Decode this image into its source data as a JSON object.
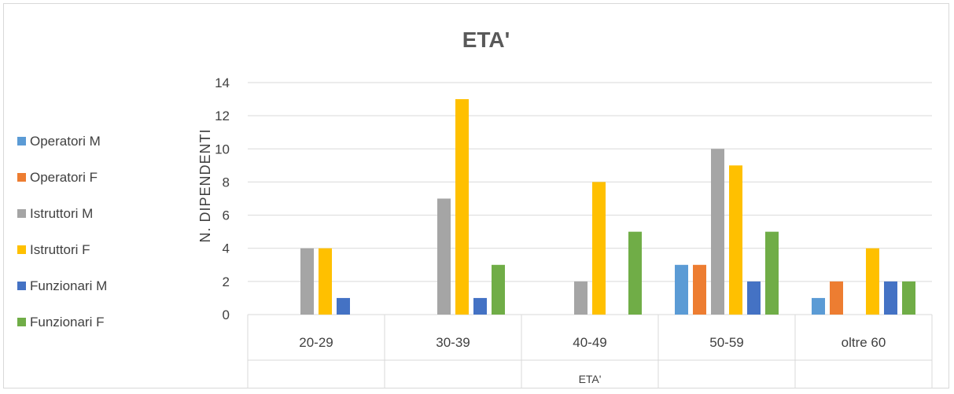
{
  "chart_data": {
    "type": "bar",
    "title": "ETA'",
    "xlabel": "ETA'",
    "ylabel": "N. DIPENDENTI",
    "ylim": [
      0,
      14
    ],
    "yticks": [
      0,
      2,
      4,
      6,
      8,
      10,
      12,
      14
    ],
    "grid": true,
    "legend_position": "left",
    "categories": [
      "20-29",
      "30-39",
      "40-49",
      "50-59",
      "oltre 60"
    ],
    "series": [
      {
        "name": "Operatori M",
        "color": "#5b9bd5",
        "values": [
          0,
          0,
          0,
          3,
          1
        ]
      },
      {
        "name": "Operatori F",
        "color": "#ed7d31",
        "values": [
          0,
          0,
          0,
          3,
          2
        ]
      },
      {
        "name": "Istruttori M",
        "color": "#a5a5a5",
        "values": [
          4,
          7,
          2,
          10,
          0
        ]
      },
      {
        "name": "Istruttori F",
        "color": "#ffc000",
        "values": [
          4,
          13,
          8,
          9,
          4
        ]
      },
      {
        "name": "Funzionari M",
        "color": "#4472c4",
        "values": [
          1,
          1,
          0,
          2,
          2
        ]
      },
      {
        "name": "Funzionari F",
        "color": "#70ad47",
        "values": [
          0,
          3,
          5,
          5,
          2
        ]
      }
    ]
  }
}
